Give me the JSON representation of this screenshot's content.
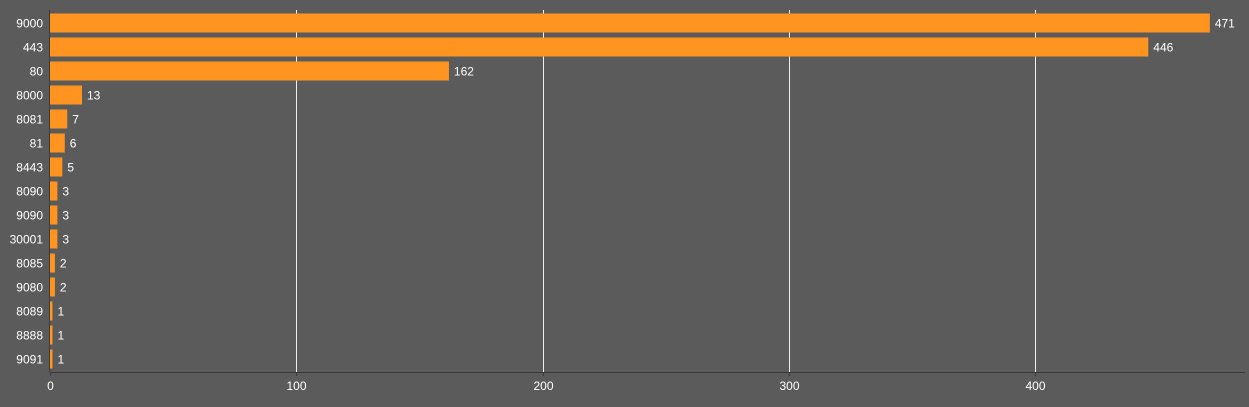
{
  "chart_data": {
    "type": "bar",
    "orientation": "horizontal",
    "categories": [
      "9000",
      "443",
      "80",
      "8000",
      "8081",
      "81",
      "8443",
      "8090",
      "9090",
      "30001",
      "8085",
      "9080",
      "8089",
      "8888",
      "9091"
    ],
    "values": [
      471,
      446,
      162,
      13,
      7,
      6,
      5,
      3,
      3,
      3,
      2,
      2,
      1,
      1,
      1
    ],
    "x_ticks": [
      "0",
      "100",
      "200",
      "300",
      "400"
    ],
    "xlim": [
      0,
      485
    ],
    "grid": true,
    "legend": "none",
    "title": "",
    "xlabel": "",
    "ylabel": "",
    "colors": {
      "background": "#5b5b5b",
      "bar": "#ff9520",
      "text": "#ffffff",
      "grid": "#ffffff"
    }
  }
}
